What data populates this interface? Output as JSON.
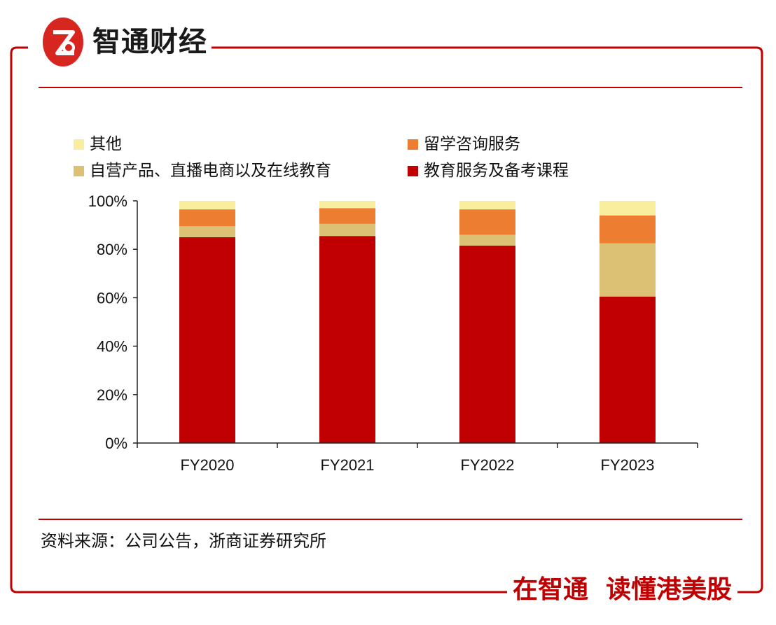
{
  "brand": {
    "name": "智通财经",
    "logo_text": "Z"
  },
  "legend": [
    {
      "label": "其他",
      "color": "#f9ee9d"
    },
    {
      "label": "留学咨询服务",
      "color": "#ed7d31"
    },
    {
      "label": "自营产品、直播电商以及在线教育",
      "color": "#dcc175"
    },
    {
      "label": "教育服务及备考课程",
      "color": "#c00000"
    }
  ],
  "chart_data": {
    "type": "bar",
    "stacked": true,
    "categories": [
      "FY2020",
      "FY2021",
      "FY2022",
      "FY2023"
    ],
    "series": [
      {
        "name": "教育服务及备考课程",
        "color": "#c00000",
        "values": [
          85.0,
          85.5,
          81.5,
          60.5
        ]
      },
      {
        "name": "自营产品、直播电商以及在线教育",
        "color": "#dcc175",
        "values": [
          4.5,
          5.0,
          4.5,
          22.0
        ]
      },
      {
        "name": "留学咨询服务",
        "color": "#ed7d31",
        "values": [
          7.0,
          6.5,
          10.5,
          11.5
        ]
      },
      {
        "name": "其他",
        "color": "#f9ee9d",
        "values": [
          3.5,
          3.0,
          3.5,
          6.0
        ]
      }
    ],
    "y_ticks": [
      "0%",
      "20%",
      "40%",
      "60%",
      "80%",
      "100%"
    ],
    "ylim": [
      0,
      100
    ],
    "xlabel": "",
    "ylabel": "",
    "grid": false
  },
  "footer": {
    "source": "资料来源：公司公告，浙商证券研究所",
    "slogan_left": "在智通",
    "slogan_right": "读懂港美股"
  }
}
